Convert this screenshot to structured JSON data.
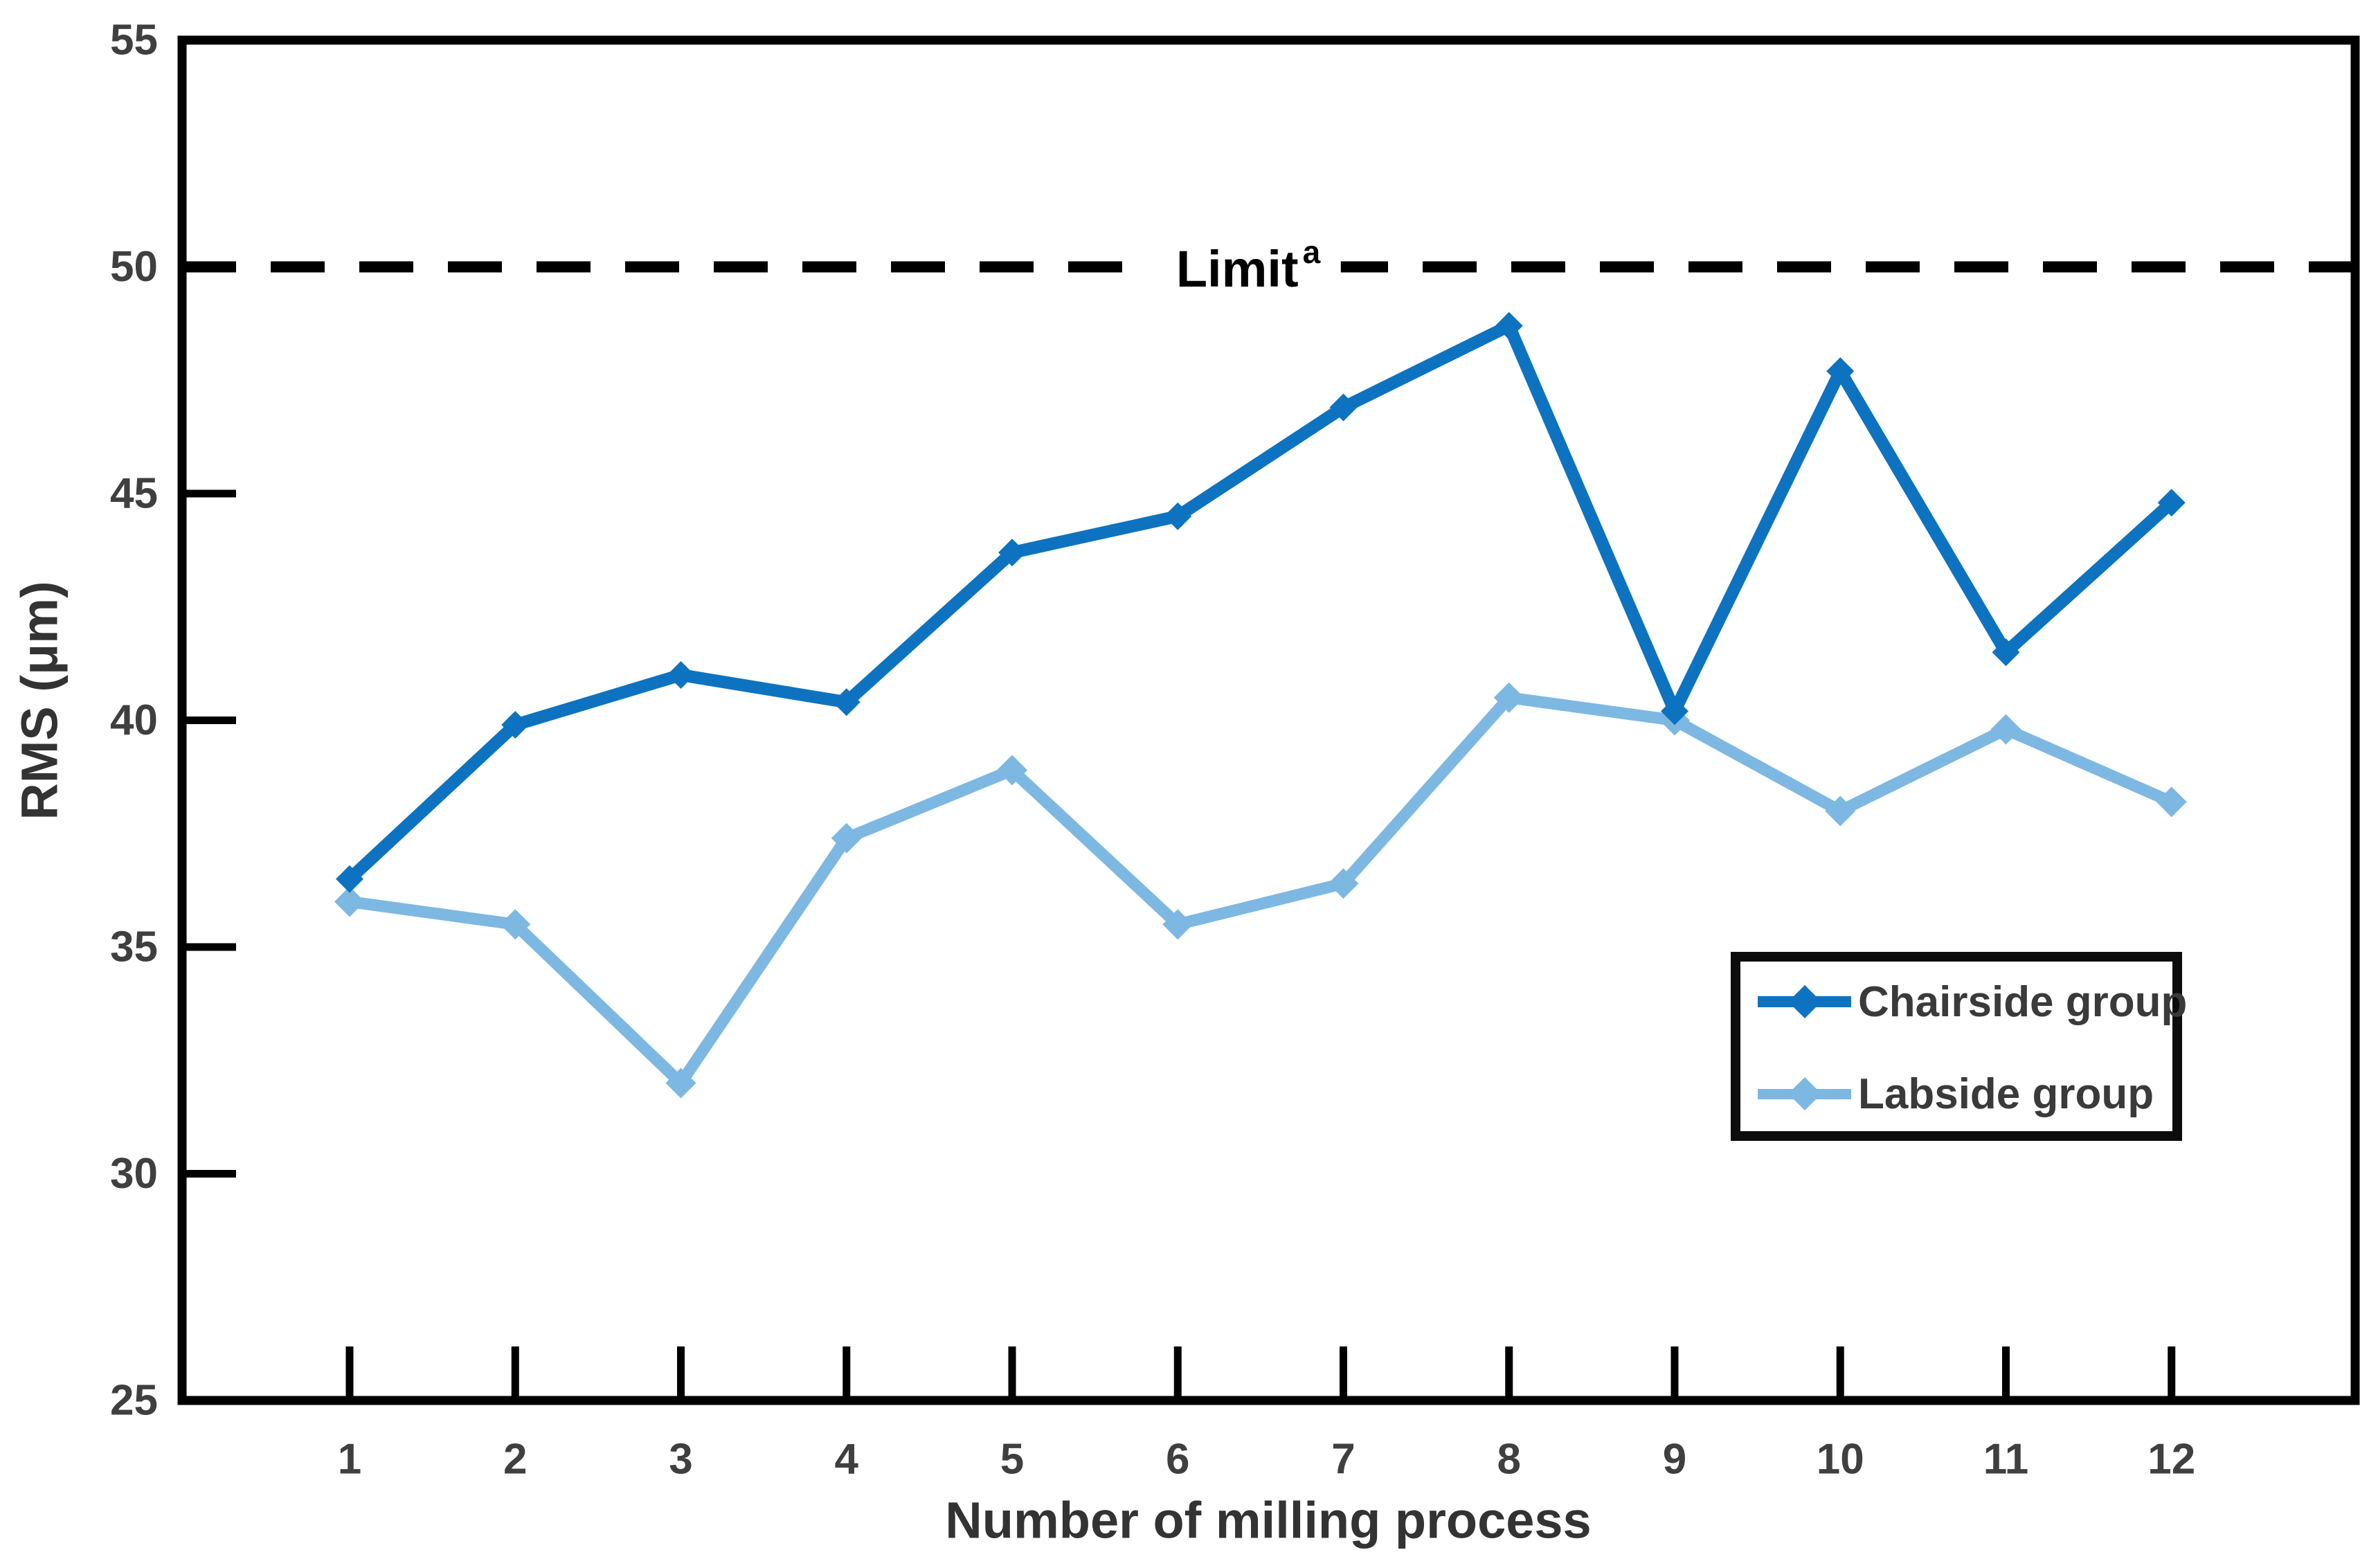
{
  "chart_data": {
    "type": "line",
    "title": "",
    "xlabel": "Number of milling process",
    "ylabel": "RMS (μm)",
    "x": [
      1,
      2,
      3,
      4,
      5,
      6,
      7,
      8,
      9,
      10,
      11,
      12
    ],
    "ylim": [
      25,
      55
    ],
    "yticks": [
      25,
      30,
      35,
      40,
      45,
      50,
      55
    ],
    "grid": false,
    "legend_position": "lower right",
    "series": [
      {
        "name": "Chairside group",
        "color": "#0d73c0",
        "marker": "diamond",
        "line_width": 18,
        "marker_size": 20,
        "values": [
          36.5,
          39.9,
          41.0,
          40.4,
          43.7,
          44.5,
          46.9,
          48.7,
          40.2,
          47.7,
          41.5,
          44.8
        ]
      },
      {
        "name": "Labside group",
        "color": "#7db8e2",
        "marker": "diamond",
        "line_width": 17,
        "marker_size": 22,
        "values": [
          36.0,
          35.5,
          32.0,
          37.4,
          38.9,
          35.5,
          36.4,
          40.5,
          40.0,
          38.0,
          39.8,
          38.2
        ]
      }
    ],
    "annotations": [
      {
        "type": "hline",
        "y": 50,
        "style": "dashed",
        "label": "Limit",
        "label_superscript": "a"
      }
    ],
    "style": {
      "axis_color": "#000000",
      "limit_color": "#000000",
      "tick_label_color": "#3f3f3f",
      "tick_font_size": 62
    }
  }
}
